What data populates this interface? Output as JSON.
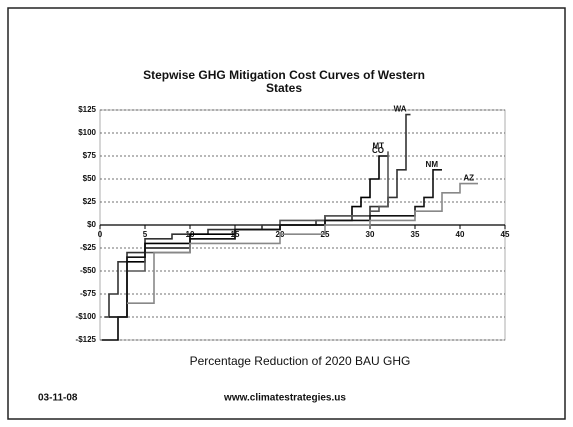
{
  "chart_data": {
    "type": "line",
    "title": "Stepwise GHG Mitigation Cost Curves of Western States",
    "xlabel": "Percentage Reduction of 2020 BAU GHG",
    "footer_date": "03-11-08",
    "footer_url": "www.climatestrategies.us",
    "xlim": [
      0,
      45
    ],
    "xticks": [
      0,
      5,
      10,
      15,
      20,
      25,
      30,
      35,
      40,
      45
    ],
    "ylim": [
      -125,
      125
    ],
    "yticks": [
      {
        "value": -125,
        "label": "-$125"
      },
      {
        "value": -100,
        "label": "-$100"
      },
      {
        "value": -75,
        "label": "-$75"
      },
      {
        "value": -50,
        "label": "-$50"
      },
      {
        "value": -25,
        "label": "-$25"
      },
      {
        "value": 0,
        "label": "$0"
      },
      {
        "value": 25,
        "label": "$25"
      },
      {
        "value": 50,
        "label": "$50"
      },
      {
        "value": 75,
        "label": "$75"
      },
      {
        "value": 100,
        "label": "$100"
      },
      {
        "value": 125,
        "label": "$125"
      }
    ],
    "grid": true,
    "series": [
      {
        "name": "WA",
        "color": "#333333",
        "x": [
          0.5,
          1,
          1,
          2,
          2,
          3,
          3,
          5,
          5,
          8,
          8,
          12,
          12,
          18,
          18,
          24,
          24,
          28,
          28,
          30,
          30,
          32,
          32,
          33,
          33,
          34,
          34,
          34.5
        ],
        "y": [
          -100,
          -100,
          -75,
          -75,
          -40,
          -40,
          -30,
          -30,
          -15,
          -15,
          -10,
          -10,
          -5,
          -5,
          0,
          0,
          5,
          5,
          10,
          10,
          20,
          20,
          30,
          30,
          60,
          60,
          120,
          120
        ]
      },
      {
        "name": "CO",
        "color": "#000000",
        "x": [
          0.2,
          2,
          2,
          3,
          3,
          5,
          5,
          10,
          10,
          15,
          15,
          20,
          20,
          25,
          25,
          28,
          28,
          29,
          29,
          30,
          30,
          31,
          31,
          32
        ],
        "y": [
          -125,
          -125,
          -100,
          -100,
          -40,
          -40,
          -20,
          -20,
          -10,
          -10,
          -5,
          -5,
          0,
          0,
          10,
          10,
          20,
          20,
          30,
          30,
          50,
          50,
          75,
          75
        ]
      },
      {
        "name": "MT",
        "color": "#555555",
        "x": [
          0.5,
          3,
          3,
          5,
          5,
          10,
          10,
          15,
          15,
          20,
          20,
          25,
          25,
          30,
          30,
          31,
          31,
          32,
          32
        ],
        "y": [
          -100,
          -100,
          -50,
          -50,
          -30,
          -30,
          -15,
          -15,
          -5,
          -5,
          5,
          5,
          10,
          10,
          15,
          15,
          20,
          20,
          80
        ]
      },
      {
        "name": "NM",
        "color": "#111111",
        "x": [
          1,
          3,
          3,
          5,
          5,
          10,
          10,
          15,
          15,
          20,
          20,
          25,
          25,
          30,
          30,
          35,
          35,
          36,
          36,
          37,
          37,
          38
        ],
        "y": [
          -100,
          -100,
          -35,
          -35,
          -25,
          -25,
          -15,
          -15,
          -5,
          -5,
          0,
          0,
          5,
          5,
          10,
          10,
          20,
          20,
          30,
          30,
          60,
          60
        ]
      },
      {
        "name": "AZ",
        "color": "#888888",
        "x": [
          3,
          6,
          6,
          10,
          10,
          20,
          20,
          25,
          25,
          30,
          30,
          35,
          35,
          38,
          38,
          40,
          40,
          42
        ],
        "y": [
          -85,
          -85,
          -30,
          -30,
          -20,
          -20,
          -10,
          -10,
          0,
          0,
          5,
          5,
          15,
          15,
          35,
          35,
          45,
          45
        ]
      }
    ]
  }
}
